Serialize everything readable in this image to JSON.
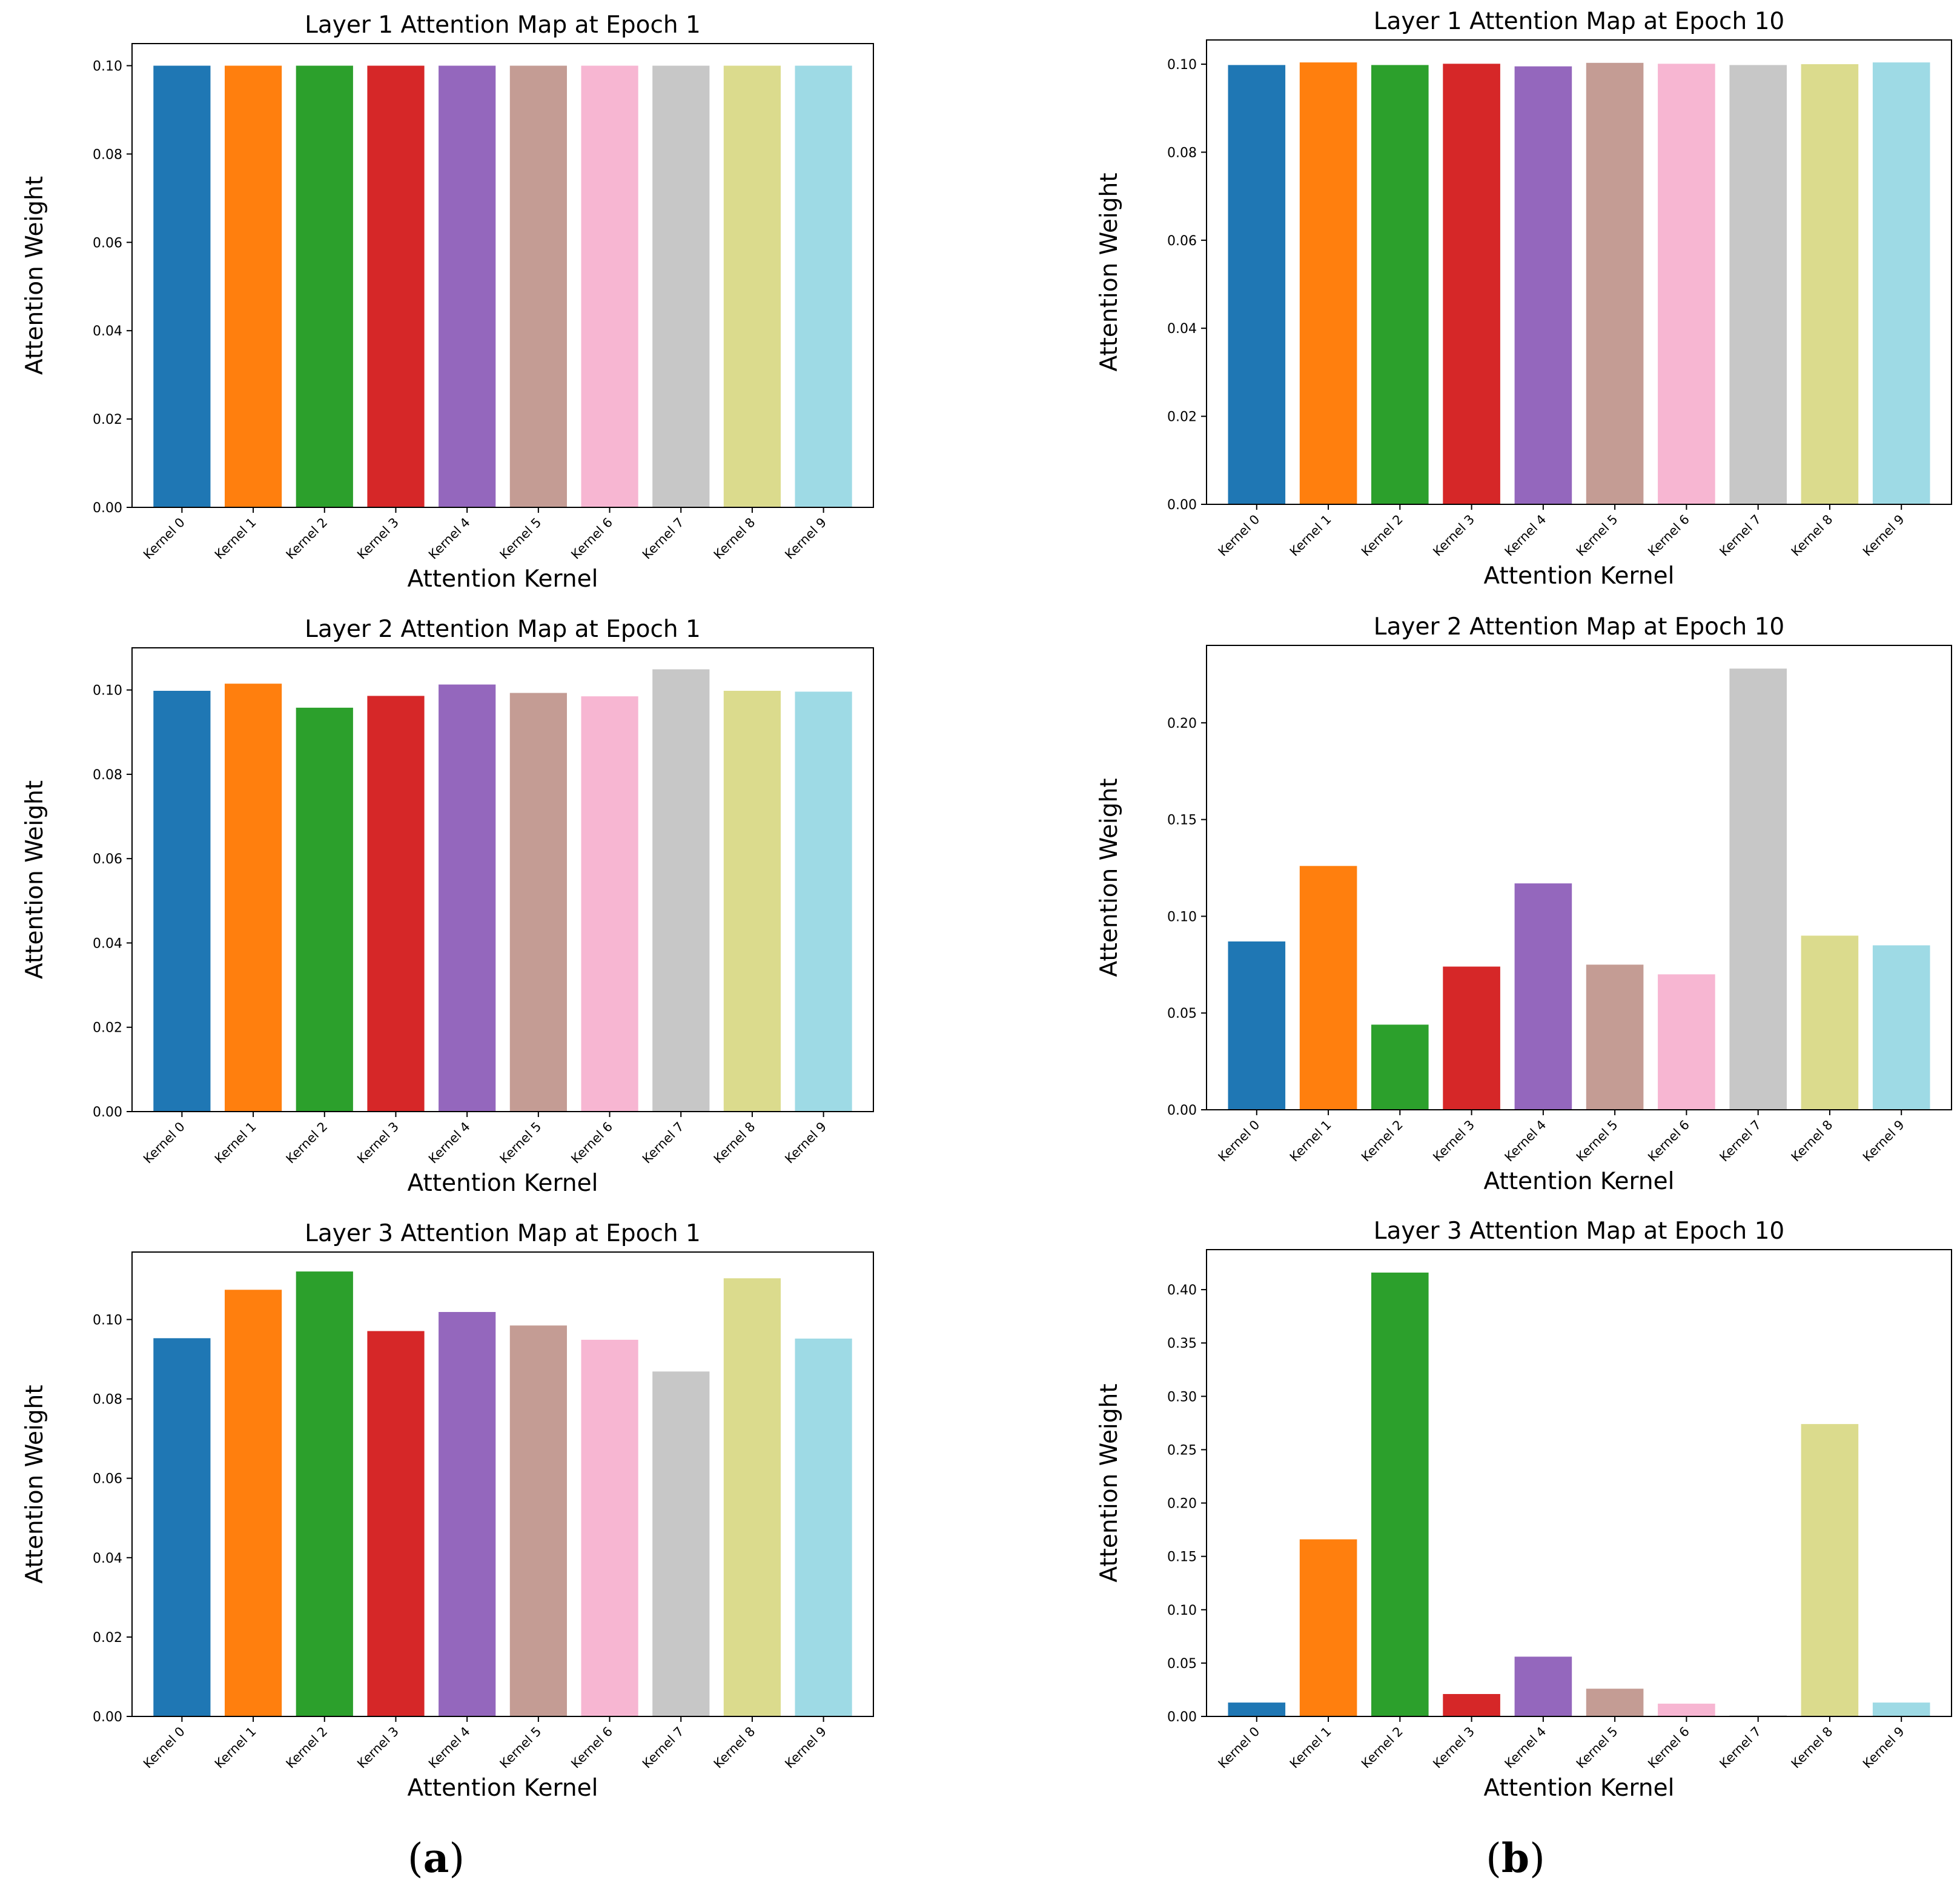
{
  "panel_labels": [
    {
      "open": "(",
      "letter": "a",
      "close": ")"
    },
    {
      "open": "(",
      "letter": "b",
      "close": ")"
    }
  ],
  "colors": [
    "#1f77b4",
    "#ff7f0e",
    "#2ca02c",
    "#d62728",
    "#9467bd",
    "#c49c94",
    "#f7b6d2",
    "#c7c7c7",
    "#dbdb8d",
    "#9edae5"
  ],
  "chart_data": [
    {
      "type": "bar",
      "title": "Layer 1 Attention Map at Epoch 1",
      "xlabel": "Attention Kernel",
      "ylabel": "Attention Weight",
      "categories": [
        "Kernel 0",
        "Kernel 1",
        "Kernel 2",
        "Kernel 3",
        "Kernel 4",
        "Kernel 5",
        "Kernel 6",
        "Kernel 7",
        "Kernel 8",
        "Kernel 9"
      ],
      "values": [
        0.1,
        0.1,
        0.1,
        0.1,
        0.1,
        0.1,
        0.1,
        0.1,
        0.1,
        0.1
      ],
      "ylim": [
        0,
        0.105
      ],
      "yticks": [
        "0.00",
        "0.02",
        "0.04",
        "0.06",
        "0.08",
        "0.10"
      ],
      "ytick_values": [
        0,
        0.02,
        0.04,
        0.06,
        0.08,
        0.1
      ]
    },
    {
      "type": "bar",
      "title": "Layer 1 Attention Map at Epoch 10",
      "xlabel": "Attention Kernel",
      "ylabel": "Attention Weight",
      "categories": [
        "Kernel 0",
        "Kernel 1",
        "Kernel 2",
        "Kernel 3",
        "Kernel 4",
        "Kernel 5",
        "Kernel 6",
        "Kernel 7",
        "Kernel 8",
        "Kernel 9"
      ],
      "values": [
        0.0998,
        0.1004,
        0.0998,
        0.1001,
        0.0995,
        0.1003,
        0.1001,
        0.0998,
        0.1,
        0.1004
      ],
      "ylim": [
        0,
        0.1055
      ],
      "yticks": [
        "0.00",
        "0.02",
        "0.04",
        "0.06",
        "0.08",
        "0.10"
      ],
      "ytick_values": [
        0,
        0.02,
        0.04,
        0.06,
        0.08,
        0.1
      ]
    },
    {
      "type": "bar",
      "title": "Layer 2 Attention Map at Epoch 1",
      "xlabel": "Attention Kernel",
      "ylabel": "Attention Weight",
      "categories": [
        "Kernel 0",
        "Kernel 1",
        "Kernel 2",
        "Kernel 3",
        "Kernel 4",
        "Kernel 5",
        "Kernel 6",
        "Kernel 7",
        "Kernel 8",
        "Kernel 9"
      ],
      "values": [
        0.0998,
        0.1015,
        0.0958,
        0.0986,
        0.1013,
        0.0993,
        0.0985,
        0.1049,
        0.0998,
        0.0996
      ],
      "ylim": [
        0,
        0.11
      ],
      "yticks": [
        "0.00",
        "0.02",
        "0.04",
        "0.06",
        "0.08",
        "0.10"
      ],
      "ytick_values": [
        0,
        0.02,
        0.04,
        0.06,
        0.08,
        0.1
      ]
    },
    {
      "type": "bar",
      "title": "Layer 2 Attention Map at Epoch 10",
      "xlabel": "Attention Kernel",
      "ylabel": "Attention Weight",
      "categories": [
        "Kernel 0",
        "Kernel 1",
        "Kernel 2",
        "Kernel 3",
        "Kernel 4",
        "Kernel 5",
        "Kernel 6",
        "Kernel 7",
        "Kernel 8",
        "Kernel 9"
      ],
      "values": [
        0.087,
        0.126,
        0.044,
        0.074,
        0.117,
        0.075,
        0.07,
        0.228,
        0.09,
        0.085
      ],
      "ylim": [
        0,
        0.24
      ],
      "yticks": [
        "0.00",
        "0.05",
        "0.10",
        "0.15",
        "0.20"
      ],
      "ytick_values": [
        0,
        0.05,
        0.1,
        0.15,
        0.2
      ]
    },
    {
      "type": "bar",
      "title": "Layer 3 Attention Map at Epoch 1",
      "xlabel": "Attention Kernel",
      "ylabel": "Attention Weight",
      "categories": [
        "Kernel 0",
        "Kernel 1",
        "Kernel 2",
        "Kernel 3",
        "Kernel 4",
        "Kernel 5",
        "Kernel 6",
        "Kernel 7",
        "Kernel 8",
        "Kernel 9"
      ],
      "values": [
        0.0953,
        0.1075,
        0.1121,
        0.0971,
        0.1019,
        0.0985,
        0.0949,
        0.0869,
        0.1104,
        0.0952
      ],
      "ylim": [
        0,
        0.117
      ],
      "yticks": [
        "0.00",
        "0.02",
        "0.04",
        "0.06",
        "0.08",
        "0.10"
      ],
      "ytick_values": [
        0,
        0.02,
        0.04,
        0.06,
        0.08,
        0.1
      ]
    },
    {
      "type": "bar",
      "title": "Layer 3 Attention Map at Epoch 10",
      "xlabel": "Attention Kernel",
      "ylabel": "Attention Weight",
      "categories": [
        "Kernel 0",
        "Kernel 1",
        "Kernel 2",
        "Kernel 3",
        "Kernel 4",
        "Kernel 5",
        "Kernel 6",
        "Kernel 7",
        "Kernel 8",
        "Kernel 9"
      ],
      "values": [
        0.013,
        0.166,
        0.416,
        0.021,
        0.056,
        0.026,
        0.012,
        0.001,
        0.274,
        0.013
      ],
      "ylim": [
        0,
        0.4375
      ],
      "yticks": [
        "0.00",
        "0.05",
        "0.10",
        "0.15",
        "0.20",
        "0.25",
        "0.30",
        "0.35",
        "0.40"
      ],
      "ytick_values": [
        0,
        0.05,
        0.1,
        0.15,
        0.2,
        0.25,
        0.3,
        0.35,
        0.4
      ]
    }
  ]
}
